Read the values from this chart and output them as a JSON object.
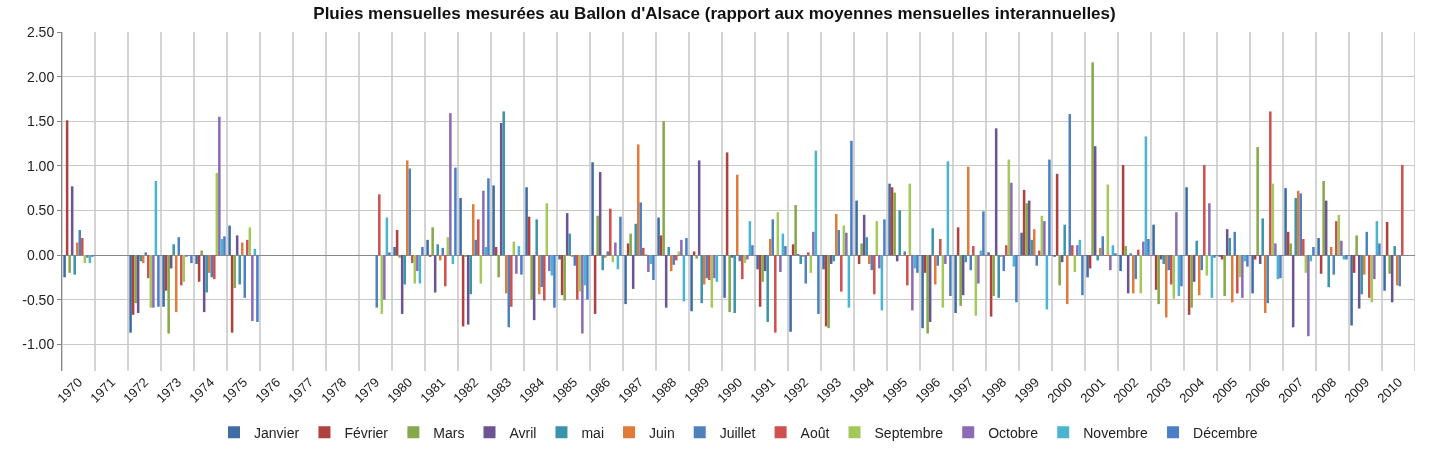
{
  "chart_data": {
    "type": "bar",
    "title": "Pluies mensuelles mesurées au Ballon d'Alsace (rapport aux moyennes mensuelles interannuelles)",
    "categories": [
      "1970",
      "1971",
      "1972",
      "1973",
      "1974",
      "1975",
      "1976",
      "1977",
      "1978",
      "1979",
      "1980",
      "1981",
      "1982",
      "1983",
      "1984",
      "1985",
      "1986",
      "1987",
      "1988",
      "1989",
      "1990",
      "1991",
      "1992",
      "1993",
      "1994",
      "1995",
      "1996",
      "1997",
      "1998",
      "1999",
      "2000",
      "2001",
      "2002",
      "2003",
      "2004",
      "2005",
      "2006",
      "2007",
      "2008",
      "2009",
      "2010"
    ],
    "series": [
      {
        "name": "Janvier",
        "color": "#3e6ca4",
        "values": [
          -0.25,
          null,
          -0.87,
          -0.58,
          -0.1,
          0.33,
          null,
          null,
          null,
          null,
          0.09,
          0.17,
          0.64,
          0.78,
          0.76,
          -0.05,
          1.04,
          -0.55,
          0.42,
          -0.63,
          -0.48,
          -0.16,
          -0.86,
          -0.16,
          0.61,
          0.8,
          -0.82,
          -0.65,
          0.03,
          0.25,
          -0.02,
          -0.25,
          -0.18,
          0.34,
          0.76,
          -0.02,
          -0.43,
          0.75,
          0.19,
          -0.79,
          -0.4
        ]
      },
      {
        "name": "Février",
        "color": "#b0413e",
        "values": [
          1.51,
          null,
          -0.67,
          -0.4,
          -0.3,
          -0.87,
          null,
          null,
          null,
          null,
          0.28,
          -0.02,
          -0.8,
          0.09,
          0.43,
          -0.45,
          -0.66,
          0.13,
          0.22,
          0.04,
          1.15,
          -0.58,
          0.12,
          -0.8,
          -0.1,
          0.76,
          -0.2,
          0.31,
          -0.69,
          0.73,
          0.91,
          -0.15,
          1.01,
          -0.39,
          -0.67,
          -0.05,
          -0.05,
          0.26,
          -0.21,
          -0.2,
          0.37
        ]
      },
      {
        "name": "Mars",
        "color": "#86a84a",
        "values": [
          -0.2,
          null,
          -0.54,
          -0.88,
          0.05,
          -0.37,
          null,
          null,
          null,
          null,
          -0.03,
          0.31,
          -0.02,
          -0.25,
          -0.5,
          -0.51,
          0.44,
          0.24,
          1.5,
          -0.04,
          -0.64,
          -0.3,
          0.56,
          -0.82,
          0.13,
          0.7,
          -0.88,
          -0.57,
          -0.46,
          0.58,
          -0.34,
          2.16,
          0.1,
          -0.55,
          -0.59,
          -0.46,
          1.21,
          0.13,
          0.83,
          0.22,
          -0.21
        ]
      },
      {
        "name": "Avril",
        "color": "#6c5391",
        "values": [
          0.77,
          null,
          -0.65,
          -0.15,
          -0.64,
          0.22,
          null,
          null,
          null,
          null,
          -0.66,
          -0.42,
          -0.78,
          1.48,
          -0.73,
          0.47,
          0.93,
          -0.38,
          -0.59,
          1.06,
          -0.03,
          -0.18,
          0.01,
          -0.1,
          0.45,
          -0.07,
          -0.75,
          -0.45,
          1.42,
          0.61,
          -0.08,
          1.22,
          -0.43,
          -0.05,
          -0.3,
          0.29,
          -0.1,
          -0.81,
          0.61,
          -0.6,
          -0.53
        ]
      },
      {
        "name": "mai",
        "color": "#3a94aa",
        "values": [
          -0.22,
          null,
          -0.07,
          0.12,
          -0.42,
          -0.33,
          null,
          null,
          null,
          null,
          -0.33,
          0.12,
          -0.44,
          1.61,
          0.4,
          0.24,
          -0.17,
          0.35,
          0.09,
          -0.54,
          -0.65,
          -0.75,
          -0.1,
          -0.07,
          0.2,
          0.5,
          0.3,
          -0.08,
          -0.48,
          0.17,
          0.34,
          -0.06,
          0.02,
          -0.1,
          0.16,
          0.19,
          0.41,
          0.64,
          -0.36,
          -0.44,
          0.1
        ]
      },
      {
        "name": "Juin",
        "color": "#e07b39",
        "values": [
          0.14,
          null,
          -0.09,
          -0.64,
          -0.2,
          0.14,
          null,
          null,
          null,
          null,
          1.06,
          -0.06,
          0.57,
          -0.43,
          -0.44,
          -0.02,
          -0.03,
          1.24,
          -0.18,
          -0.33,
          0.9,
          0.18,
          -0.02,
          0.46,
          -0.1,
          -0.01,
          -0.33,
          0.99,
          -0.02,
          0.29,
          -0.55,
          0.08,
          -0.43,
          -0.7,
          -0.45,
          -0.53,
          -0.65,
          0.72,
          0.09,
          -0.22,
          -0.34
        ]
      },
      {
        "name": "Juillet",
        "color": "#4f81bd",
        "values": [
          0.28,
          null,
          0.03,
          0.2,
          -0.25,
          -0.48,
          null,
          null,
          null,
          -0.59,
          0.97,
          0.08,
          0.17,
          -0.81,
          -0.36,
          -0.12,
          0.04,
          0.59,
          -0.11,
          -0.26,
          -0.07,
          0.4,
          -0.32,
          0.28,
          -0.17,
          0.04,
          -0.12,
          -0.17,
          -0.18,
          -0.12,
          1.58,
          0.21,
          -0.27,
          -0.17,
          -0.17,
          0.26,
          -0.54,
          0.69,
          -0.22,
          0.26,
          -0.35
        ]
      },
      {
        "name": "Août",
        "color": "#d0504d",
        "values": [
          0.19,
          null,
          -0.26,
          -0.34,
          -0.27,
          0.17,
          null,
          null,
          null,
          0.68,
          -0.09,
          -0.35,
          0.4,
          -0.58,
          -0.51,
          -0.5,
          0.52,
          0.08,
          -0.06,
          -0.28,
          -0.27,
          -0.87,
          0.03,
          -0.41,
          -0.44,
          -0.34,
          0.18,
          0.1,
          0.11,
          0.05,
          0.11,
          -0.01,
          0.06,
          -0.33,
          1.01,
          -0.43,
          1.61,
          0.18,
          0.38,
          -0.48,
          1.01
        ]
      },
      {
        "name": "Septembre",
        "color": "#a5c85a",
        "values": [
          -0.09,
          null,
          -0.59,
          -0.3,
          0.92,
          0.31,
          null,
          null,
          null,
          -0.66,
          -0.32,
          0.2,
          -0.32,
          0.15,
          0.58,
          -0.41,
          -0.08,
          0.01,
          0.04,
          -0.59,
          -0.09,
          0.48,
          -0.2,
          0.33,
          0.38,
          0.8,
          -0.59,
          -0.68,
          1.07,
          0.44,
          -0.19,
          0.79,
          -0.43,
          -0.49,
          -0.23,
          -0.25,
          0.8,
          -0.2,
          0.45,
          -0.53,
          null
        ]
      },
      {
        "name": "Octobre",
        "color": "#8c6bb6",
        "values": [
          -0.03,
          null,
          -0.59,
          -0.02,
          1.55,
          -0.74,
          null,
          null,
          null,
          -0.5,
          -0.18,
          1.59,
          0.72,
          -0.21,
          -0.18,
          -0.88,
          0.14,
          -0.19,
          0.17,
          -0.26,
          -0.05,
          -0.19,
          0.26,
          0.25,
          -0.15,
          -0.62,
          -0.1,
          -0.32,
          0.81,
          0.38,
          0.11,
          -0.17,
          0.15,
          0.48,
          0.58,
          -0.48,
          0.13,
          -0.91,
          0.16,
          -0.27,
          null
        ]
      },
      {
        "name": "Novembre",
        "color": "#4bb4d0",
        "values": [
          -0.09,
          null,
          0.83,
          0.0,
          0.18,
          0.07,
          null,
          null,
          null,
          0.42,
          -0.32,
          -0.1,
          0.09,
          0.1,
          -0.23,
          -0.34,
          -0.16,
          -0.1,
          -0.52,
          -0.3,
          0.38,
          0.24,
          1.17,
          -0.59,
          -0.62,
          -0.15,
          1.05,
          0.05,
          -0.13,
          -0.61,
          0.17,
          0.11,
          1.33,
          -0.46,
          -0.48,
          -0.07,
          -0.27,
          -0.07,
          -0.05,
          0.38,
          null
        ]
      },
      {
        "name": "Décembre",
        "color": "#4a7fc8",
        "values": [
          -0.02,
          null,
          -0.58,
          -0.09,
          0.21,
          -0.75,
          null,
          null,
          null,
          0.03,
          0.09,
          0.98,
          0.86,
          -0.22,
          -0.59,
          -0.5,
          0.43,
          -0.28,
          0.19,
          0.0,
          0.11,
          0.1,
          -0.66,
          1.28,
          0.4,
          -0.2,
          -0.46,
          0.49,
          -0.53,
          1.07,
          -0.45,
          0.02,
          0.18,
          -0.35,
          -0.03,
          -0.13,
          -0.26,
          0.09,
          -0.05,
          0.13,
          null
        ]
      }
    ],
    "ylim": [
      -1.3,
      2.5
    ],
    "yticks": [
      {
        "value": -1,
        "label": "-1.00"
      },
      {
        "value": -0.5,
        "label": "-0.50"
      },
      {
        "value": 0,
        "label": "0.00"
      },
      {
        "value": 0.5,
        "label": "0.50"
      },
      {
        "value": 1,
        "label": "1.00"
      },
      {
        "value": 1.5,
        "label": "1.50"
      },
      {
        "value": 2,
        "label": "2.00"
      },
      {
        "value": 2.5,
        "label": "2.50"
      }
    ],
    "grid": true,
    "legend": "bottom"
  }
}
